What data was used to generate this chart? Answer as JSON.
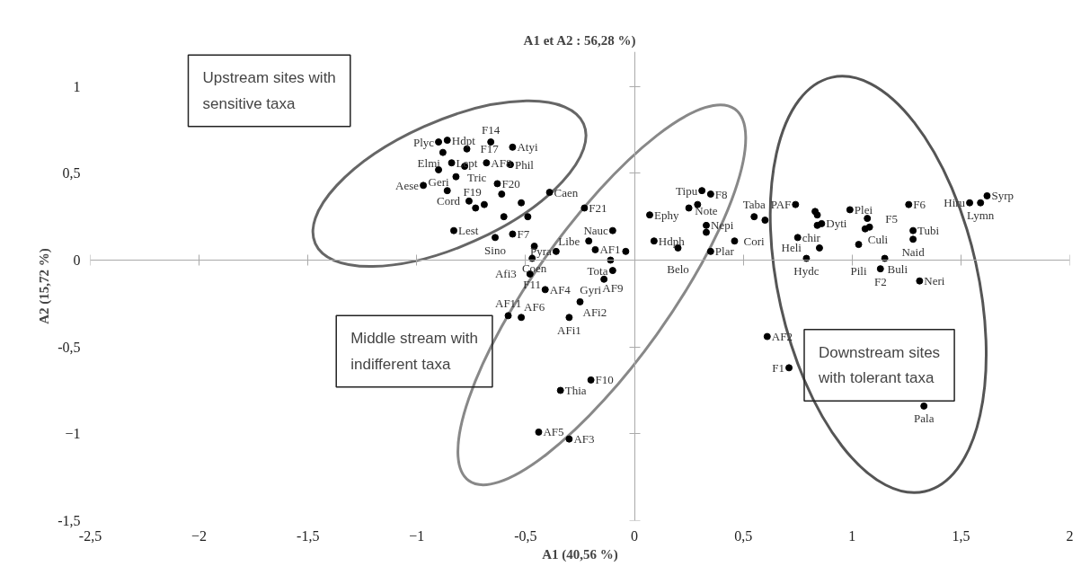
{
  "chart_data": {
    "type": "scatter",
    "title": "A1 et A2 : 56,28 %)",
    "xlabel": "A1 (40,56 %)",
    "ylabel": "A2 (15,72 %)",
    "xlim": [
      -2.5,
      2
    ],
    "ylim": [
      -1.5,
      1.2
    ],
    "xticks": [
      {
        "value": -2.5,
        "label": "-2,5"
      },
      -2,
      {
        "value": -1.5,
        "label": "-1,5"
      },
      -1,
      {
        "value": -0.5,
        "label": "-0,5"
      },
      0,
      {
        "value": 0.5,
        "label": "0,5"
      },
      1,
      {
        "value": 1.5,
        "label": "1,5"
      },
      2
    ],
    "yticks": [
      {
        "value": -1.5,
        "label": "-1,5"
      },
      -1,
      {
        "value": -0.5,
        "label": "-0,5"
      },
      0,
      {
        "value": 0.5,
        "label": "0,5"
      },
      1
    ],
    "marker": "circle",
    "series": [
      {
        "color": "#000000",
        "x": [
          -0.9,
          -0.86,
          -0.77,
          -0.66,
          -0.88,
          -0.84,
          -0.78,
          -0.9,
          -0.68,
          -0.57,
          -0.56,
          -0.82,
          -0.97,
          -0.63,
          -0.86,
          -0.61,
          -0.39,
          -0.52,
          -0.76,
          -0.69,
          -0.73,
          -0.6,
          -0.49,
          -0.83,
          -0.64,
          -0.56,
          -0.23,
          -0.1,
          -0.21,
          -0.46,
          -0.36,
          -0.47,
          -0.18,
          -0.11,
          -0.04,
          -0.1,
          -0.14,
          -0.48,
          -0.41,
          -0.25,
          -0.58,
          -0.52,
          -0.3,
          -0.2,
          -0.34,
          -0.44,
          -0.3,
          0.07,
          0.09,
          0.2,
          0.35,
          0.31,
          0.35,
          0.29,
          0.25,
          0.33,
          0.33,
          0.46,
          0.55,
          0.6,
          0.74,
          0.83,
          0.84,
          0.86,
          0.84,
          0.99,
          1.07,
          1.06,
          1.08,
          0.75,
          0.85,
          0.79,
          1.03,
          1.26,
          1.28,
          1.28,
          1.15,
          1.13,
          1.31,
          1.62,
          1.59,
          1.54,
          0.61,
          0.71,
          1.33
        ],
        "values": [
          0.68,
          0.69,
          0.64,
          0.68,
          0.62,
          0.56,
          0.54,
          0.52,
          0.56,
          0.55,
          0.65,
          0.48,
          0.43,
          0.44,
          0.4,
          0.38,
          0.39,
          0.33,
          0.34,
          0.32,
          0.3,
          0.25,
          0.25,
          0.17,
          0.13,
          0.15,
          0.3,
          0.17,
          0.11,
          0.08,
          0.05,
          0.01,
          0.06,
          0.0,
          0.05,
          -0.06,
          -0.11,
          -0.08,
          -0.17,
          -0.24,
          -0.32,
          -0.33,
          -0.33,
          -0.69,
          -0.75,
          -0.99,
          -1.03,
          0.26,
          0.11,
          0.07,
          0.05,
          0.4,
          0.38,
          0.32,
          0.3,
          0.2,
          0.16,
          0.11,
          0.25,
          0.23,
          0.32,
          0.28,
          0.26,
          0.21,
          0.2,
          0.29,
          0.24,
          0.18,
          0.19,
          0.13,
          0.07,
          0.01,
          0.09,
          0.32,
          0.17,
          0.12,
          0.01,
          -0.05,
          -0.12,
          0.37,
          0.33,
          0.33,
          -0.44,
          -0.62,
          -0.84
        ]
      }
    ],
    "annotations": [
      "Upstream sites with sensitive taxa",
      "Middle stream with indifferent taxa",
      "Downstream sites with tolerant taxa",
      {
        "text": "Plyc",
        "x": -0.9,
        "y": 0.68
      },
      {
        "text": "Hdpt",
        "x": -0.86,
        "y": 0.69
      },
      {
        "text": "F17",
        "x": -0.77,
        "y": 0.64
      },
      {
        "text": "F14",
        "x": -0.66,
        "y": 0.68
      },
      {
        "text": "Elmi",
        "x": -0.88,
        "y": 0.62
      },
      {
        "text": "Lept",
        "x": -0.84,
        "y": 0.56
      },
      {
        "text": "Tric",
        "x": -0.78,
        "y": 0.54
      },
      {
        "text": "Geri",
        "x": -0.9,
        "y": 0.52
      },
      {
        "text": "AF8",
        "x": -0.68,
        "y": 0.56
      },
      {
        "text": "Phil",
        "x": -0.57,
        "y": 0.55
      },
      {
        "text": "Atyi",
        "x": -0.56,
        "y": 0.65
      },
      {
        "text": "F19",
        "x": -0.82,
        "y": 0.48
      },
      {
        "text": "Aese",
        "x": -0.97,
        "y": 0.43
      },
      {
        "text": "F20",
        "x": -0.63,
        "y": 0.44
      },
      {
        "text": "Caen",
        "x": -0.39,
        "y": 0.39
      },
      {
        "text": "Cord",
        "x": -0.76,
        "y": 0.34
      },
      {
        "text": "Lest",
        "x": -0.83,
        "y": 0.17
      },
      {
        "text": "Sino",
        "x": -0.64,
        "y": 0.13
      },
      {
        "text": "F7",
        "x": -0.56,
        "y": 0.15
      },
      {
        "text": "F21",
        "x": -0.23,
        "y": 0.3
      },
      {
        "text": "Nauc",
        "x": -0.1,
        "y": 0.17
      },
      {
        "text": "Libe",
        "x": -0.21,
        "y": 0.11
      },
      {
        "text": "Coen",
        "x": -0.46,
        "y": 0.08
      },
      {
        "text": "Pyra",
        "x": -0.36,
        "y": 0.05
      },
      {
        "text": "F11",
        "x": -0.47,
        "y": 0.01
      },
      {
        "text": "AF1",
        "x": -0.18,
        "y": 0.06
      },
      {
        "text": "Tota",
        "x": -0.11,
        "y": 0.0
      },
      {
        "text": "AF9",
        "x": -0.1,
        "y": -0.06
      },
      {
        "text": "Gyri",
        "x": -0.14,
        "y": -0.11
      },
      {
        "text": "Afi3",
        "x": -0.48,
        "y": -0.08
      },
      {
        "text": "AF4",
        "x": -0.41,
        "y": -0.17
      },
      {
        "text": "AFi2",
        "x": -0.25,
        "y": -0.24
      },
      {
        "text": "AF11",
        "x": -0.58,
        "y": -0.32
      },
      {
        "text": "AF6",
        "x": -0.52,
        "y": -0.33
      },
      {
        "text": "AFi1",
        "x": -0.3,
        "y": -0.33
      },
      {
        "text": "F10",
        "x": -0.2,
        "y": -0.69
      },
      {
        "text": "Thia",
        "x": -0.34,
        "y": -0.75
      },
      {
        "text": "AF5",
        "x": -0.44,
        "y": -0.99
      },
      {
        "text": "AF3",
        "x": -0.3,
        "y": -1.03
      },
      {
        "text": "Ephy",
        "x": 0.07,
        "y": 0.26
      },
      {
        "text": "Hdph",
        "x": 0.09,
        "y": 0.11
      },
      {
        "text": "Belo",
        "x": 0.2,
        "y": 0.07
      },
      {
        "text": "Plar",
        "x": 0.35,
        "y": 0.05
      },
      {
        "text": "Tipu",
        "x": 0.31,
        "y": 0.4
      },
      {
        "text": "F8",
        "x": 0.35,
        "y": 0.38
      },
      {
        "text": "Nepi",
        "x": 0.33,
        "y": 0.2
      },
      {
        "text": "Note",
        "x": 0.33,
        "y": 0.16
      },
      {
        "text": "Cori",
        "x": 0.46,
        "y": 0.11
      },
      {
        "text": "Taba",
        "x": 0.55,
        "y": 0.25
      },
      {
        "text": "PAF",
        "x": 0.74,
        "y": 0.32
      },
      {
        "text": "Dyti",
        "x": 0.86,
        "y": 0.21
      },
      {
        "text": "Plei",
        "x": 0.99,
        "y": 0.29
      },
      {
        "text": "F5",
        "x": 1.07,
        "y": 0.24
      },
      {
        "text": "Culi",
        "x": 1.06,
        "y": 0.18
      },
      {
        "text": "chir",
        "x": 0.75,
        "y": 0.13
      },
      {
        "text": "Heli",
        "x": 0.85,
        "y": 0.07
      },
      {
        "text": "Hydc",
        "x": 0.79,
        "y": 0.01
      },
      {
        "text": "Pili",
        "x": 1.03,
        "y": 0.09
      },
      {
        "text": "F6",
        "x": 1.26,
        "y": 0.32
      },
      {
        "text": "Tubi",
        "x": 1.28,
        "y": 0.17
      },
      {
        "text": "Naid",
        "x": 1.28,
        "y": 0.12
      },
      {
        "text": "Buli",
        "x": 1.15,
        "y": 0.01
      },
      {
        "text": "F2",
        "x": 1.13,
        "y": -0.05
      },
      {
        "text": "Neri",
        "x": 1.31,
        "y": -0.12
      },
      {
        "text": "Syrp",
        "x": 1.62,
        "y": 0.37
      },
      {
        "text": "Lymn",
        "x": 1.59,
        "y": 0.33
      },
      {
        "text": "Hiru",
        "x": 1.54,
        "y": 0.33
      },
      {
        "text": "AF2",
        "x": 0.61,
        "y": -0.44
      },
      {
        "text": "F1",
        "x": 0.71,
        "y": -0.62
      },
      {
        "text": "Pala",
        "x": 1.33,
        "y": -0.84
      }
    ]
  }
}
